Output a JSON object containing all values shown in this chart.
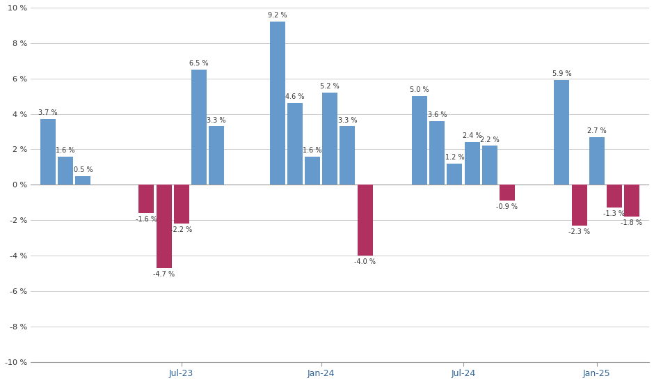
{
  "groups": [
    {
      "values": [
        3.7,
        1.6,
        0.5
      ],
      "colors": [
        "#6699CC",
        "#6699CC",
        "#6699CC"
      ]
    },
    {
      "values": [
        -1.6,
        -4.7,
        -2.2,
        6.5,
        3.3
      ],
      "colors": [
        "#B03060",
        "#B03060",
        "#B03060",
        "#6699CC",
        "#6699CC"
      ]
    },
    {
      "values": [
        9.2,
        4.6,
        1.6,
        5.2,
        3.3,
        -4.0
      ],
      "colors": [
        "#6699CC",
        "#6699CC",
        "#6699CC",
        "#6699CC",
        "#6699CC",
        "#B03060"
      ]
    },
    {
      "values": [
        5.0,
        3.6,
        1.2,
        2.4,
        2.2,
        -0.9
      ],
      "colors": [
        "#6699CC",
        "#6699CC",
        "#6699CC",
        "#6699CC",
        "#6699CC",
        "#B03060"
      ]
    },
    {
      "values": [
        5.9,
        -2.3,
        2.7,
        -1.3,
        -1.8
      ],
      "colors": [
        "#6699CC",
        "#B03060",
        "#6699CC",
        "#B03060",
        "#B03060"
      ]
    }
  ],
  "group_start_positions": [
    0,
    4.5,
    10.5,
    17.0,
    23.5
  ],
  "bar_width": 0.7,
  "bar_gap": 0.1,
  "xtick_labels": [
    "Jul-23",
    "Jan-24",
    "Jul-24",
    "Jan-25"
  ],
  "ylim": [
    -10,
    10
  ],
  "ytick_vals": [
    -10,
    -8,
    -6,
    -4,
    -2,
    0,
    2,
    4,
    6,
    8,
    10
  ],
  "background_color": "#FFFFFF",
  "grid_color": "#CCCCCC"
}
